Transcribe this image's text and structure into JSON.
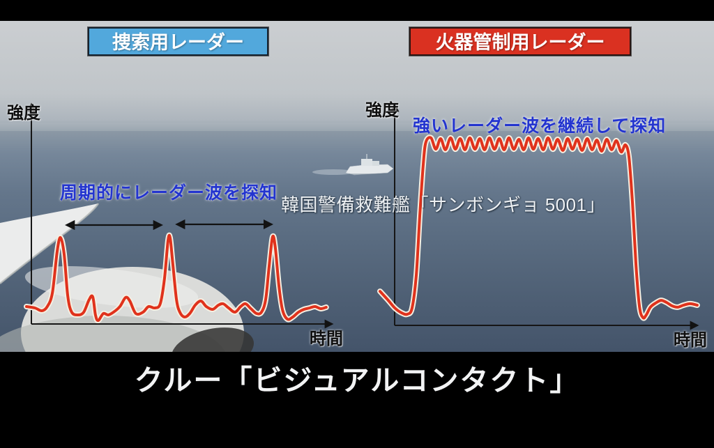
{
  "header": {
    "search_radar_label": "捜索用レーダー",
    "fire_control_radar_label": "火器管制用レーダー",
    "search_box_color": "#52a8dc",
    "fire_control_box_color": "#da3121"
  },
  "scene": {
    "ship_label": "韓国警備救難艦「サンボンギョ 5001」",
    "background": "aerial ocean view from aircraft window with white wing and engine nacelle lower-left, white coast guard ship near horizon"
  },
  "caption": {
    "text": "クルー「ビジュアルコンタクト」"
  },
  "colors": {
    "curve_red": "#e0321c",
    "curve_outline": "#f5efe2",
    "axis_black": "#161616",
    "letterbox": "#000000"
  },
  "chart_data": [
    {
      "type": "line",
      "name": "捜索用レーダー",
      "ylabel": "強度",
      "xlabel": "時間",
      "annotation": "周期的にレーダー波を探知",
      "annotation_color": "#2334cf",
      "line_color": "#e0321c",
      "line_outline_color": "#f5efe2",
      "x_units": "relative time 0-100 (no tick labels shown)",
      "y_units": "relative intensity 0-100 (no tick labels shown)",
      "interval_arrows_x": [
        [
          13.4,
          44.7
        ],
        [
          50.0,
          81.3
        ]
      ],
      "series": [
        {
          "name": "search radar intensity",
          "x": [
            0,
            2.8,
            5.1,
            6.9,
            8.6,
            10.2,
            11.3,
            12.5,
            13.7,
            15,
            17.1,
            19,
            20.8,
            22,
            22.9,
            23.8,
            25.5,
            27.1,
            28.9,
            31,
            32.9,
            34.3,
            36.3,
            38.7,
            40.5,
            42.6,
            44.4,
            45.8,
            47,
            47.7,
            48.6,
            49.8,
            50.9,
            52.5,
            54.2,
            56,
            57.9,
            59.7,
            61.8,
            63.7,
            65.3,
            67.1,
            69.2,
            71.1,
            72.7,
            74.5,
            76.4,
            78,
            79.4,
            80.6,
            81.7,
            82.6,
            83.8,
            85,
            86.6,
            88.4,
            90.3,
            92.1,
            94,
            95.8,
            97.7,
            99.5
          ],
          "y": [
            16,
            14.4,
            11.2,
            16,
            32,
            80,
            95.2,
            76,
            28,
            9.6,
            6.4,
            9.6,
            24,
            27.2,
            6.4,
            0,
            8,
            6.4,
            9.6,
            16,
            26.4,
            22.4,
            8,
            9.6,
            16,
            14.4,
            19.2,
            48,
            92,
            94.4,
            64,
            24,
            9.6,
            4,
            8,
            17.6,
            22.4,
            16,
            12.8,
            17.6,
            19.2,
            14.4,
            9.6,
            16,
            19.2,
            13.6,
            8,
            9.6,
            24,
            64,
            96,
            84,
            40,
            12,
            1.6,
            4,
            9.6,
            12.8,
            14.4,
            16,
            13.6,
            15.2
          ]
        }
      ]
    },
    {
      "type": "line",
      "name": "火器管制用レーダー",
      "ylabel": "強度",
      "xlabel": "時間",
      "annotation": "強いレーダー波を継続して探知",
      "annotation_color": "#2334cf",
      "line_color": "#e0321c",
      "line_outline_color": "#f5efe2",
      "x_units": "relative time 0-100 (no tick labels shown)",
      "y_units": "relative intensity 0-100 (no tick labels shown)",
      "series": [
        {
          "name": "fire-control radar intensity",
          "x": [
            0,
            2.4,
            4.6,
            6.7,
            8.5,
            10,
            11.3,
            12.4,
            13.5,
            14.3,
            15.9,
            17.4,
            18.9,
            20.4,
            22,
            23.5,
            25,
            26.5,
            28,
            29.6,
            31.1,
            32.6,
            34.1,
            35.7,
            37.2,
            38.7,
            40.2,
            41.7,
            43.3,
            44.8,
            46.3,
            47.8,
            49.3,
            50.9,
            52.4,
            53.9,
            55.4,
            57,
            58.5,
            60,
            61.5,
            63,
            64.6,
            66.1,
            67.6,
            69.1,
            70.7,
            72.2,
            73.7,
            75.2,
            76.5,
            77.6,
            78.7,
            79.8,
            80.9,
            82,
            83,
            84.3,
            85.9,
            87.6,
            89.3,
            91.1,
            92.8,
            94.6,
            96.7,
            98.9
          ],
          "y": [
            15.8,
            11.3,
            6.8,
            4.2,
            3.4,
            6.8,
            24.5,
            56.6,
            84.9,
            96.6,
            98.9,
            92.8,
            98.5,
            92.5,
            98.9,
            92.8,
            98.5,
            92.5,
            98.9,
            92.8,
            98.5,
            92.5,
            98.9,
            92.8,
            98.5,
            92.5,
            98.9,
            92.8,
            98.1,
            92.5,
            98.9,
            92.8,
            98.5,
            92.5,
            98.9,
            92.8,
            98.1,
            92.1,
            98.5,
            92.8,
            98.1,
            92.1,
            98.5,
            92.5,
            97.7,
            91.7,
            98.1,
            92.5,
            97.4,
            91.3,
            95.1,
            88.7,
            64.2,
            30.2,
            7.5,
            1.5,
            3,
            7.2,
            9.4,
            10.9,
            9.8,
            7.9,
            7.2,
            8.3,
            9.1,
            8.3
          ]
        }
      ]
    }
  ]
}
